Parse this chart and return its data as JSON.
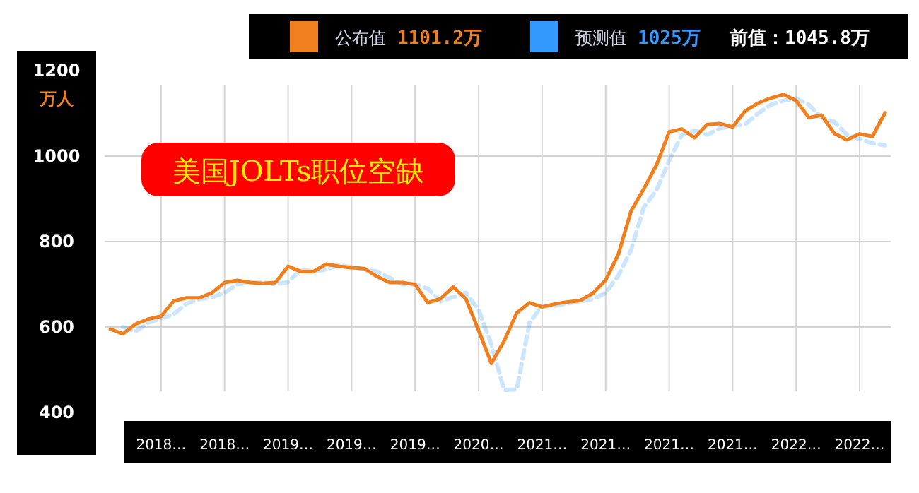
{
  "chart_data": {
    "type": "line",
    "title": "美国JOLTs职位空缺",
    "ylabel": "万人",
    "categories": [
      null,
      null,
      null,
      null,
      "2018…",
      null,
      null,
      null,
      null,
      "2018…",
      null,
      null,
      null,
      null,
      "2019…",
      null,
      null,
      null,
      null,
      "2019…",
      null,
      null,
      null,
      null,
      "2019…",
      null,
      null,
      null,
      null,
      "2020…",
      null,
      null,
      null,
      null,
      "2021…",
      null,
      null,
      null,
      null,
      "2021…",
      null,
      null,
      null,
      null,
      "2021…",
      null,
      null,
      null,
      null,
      "2021…",
      null,
      null,
      null,
      null,
      "2022…",
      null,
      null,
      null,
      null,
      "2022…",
      null,
      null
    ],
    "series": [
      {
        "name": "公布值",
        "color": "#f07f1e",
        "line_style": "solid",
        "values": [
          595,
          584,
          607,
          619,
          625,
          661,
          668,
          668,
          680,
          704,
          709,
          704,
          702,
          704,
          742,
          730,
          730,
          747,
          742,
          739,
          737,
          718,
          704,
          704,
          700,
          657,
          666,
          694,
          666,
          592,
          515,
          567,
          633,
          657,
          647,
          654,
          659,
          662,
          679,
          710,
          770,
          871,
          923,
          979,
          1057,
          1063,
          1043,
          1074,
          1076,
          1068,
          1106,
          1124,
          1136,
          1144,
          1130,
          1090,
          1096,
          1053,
          1038,
          1052,
          1046,
          1101
        ]
      },
      {
        "name": "预测值",
        "color": "#3399ff",
        "line_style": "dashed",
        "values": [
          null,
          600,
          590,
          610,
          620,
          630,
          655,
          665,
          670,
          680,
          700,
          705,
          705,
          700,
          705,
          735,
          730,
          735,
          745,
          740,
          735,
          730,
          715,
          700,
          700,
          690,
          660,
          670,
          680,
          640,
          560,
          453,
          454,
          610,
          650,
          650,
          655,
          660,
          665,
          680,
          720,
          780,
          880,
          920,
          990,
          1050,
          1060,
          1050,
          1065,
          1070,
          1075,
          1100,
          1120,
          1130,
          1135,
          1120,
          1090,
          1080,
          1050,
          1040,
          1030,
          1025
        ]
      }
    ],
    "ylim": [
      400,
      1200
    ],
    "yticks": [
      400,
      600,
      800,
      1000,
      1200
    ],
    "grid": true,
    "legend": "top",
    "marker": "none",
    "annotations": [
      "1101.2万",
      "1025万",
      "前值：1045.8万"
    ]
  }
}
